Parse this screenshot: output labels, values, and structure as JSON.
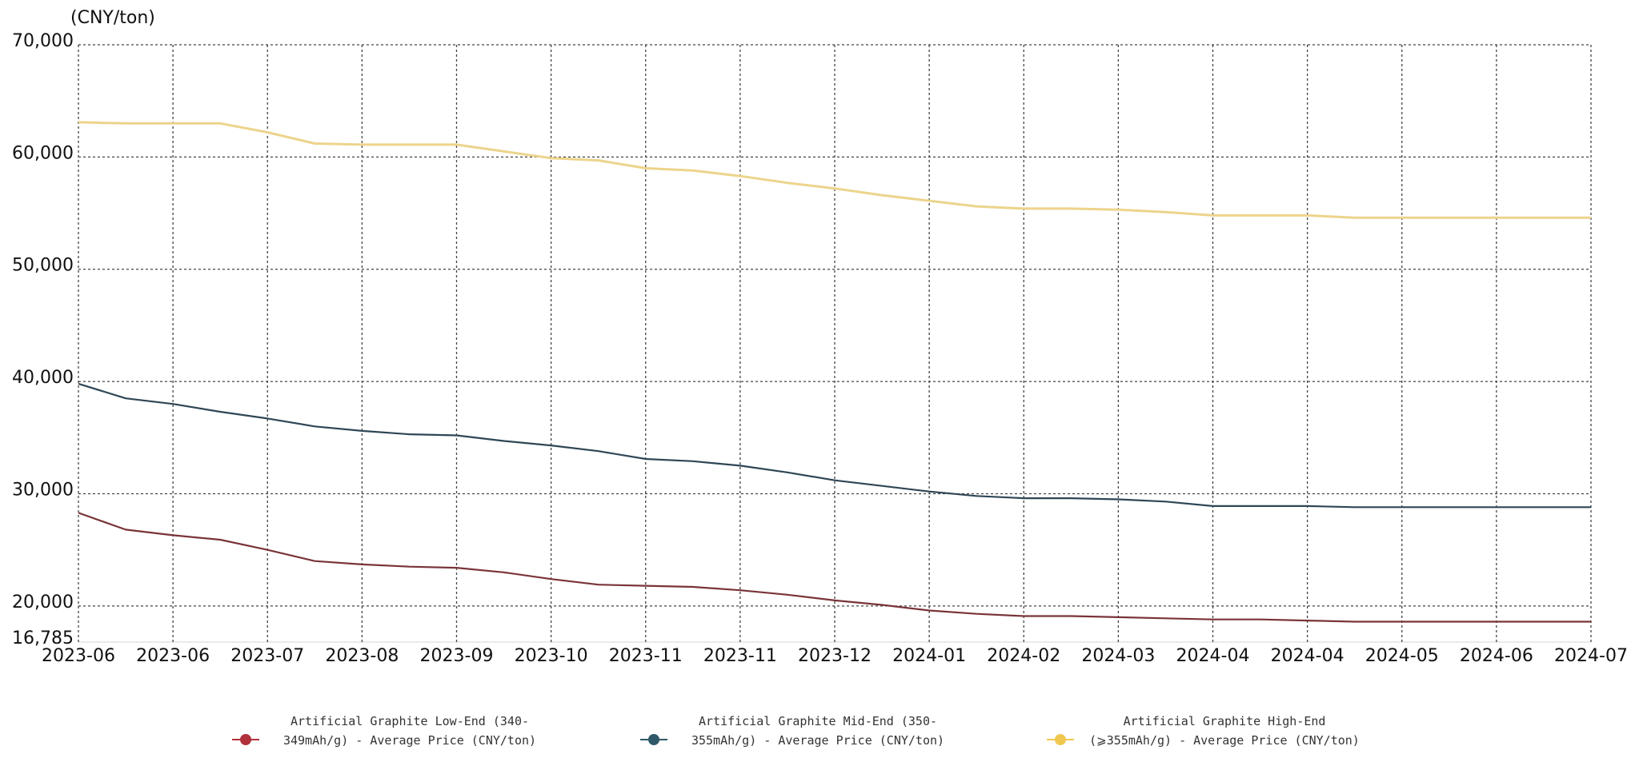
{
  "chart_data": {
    "type": "line",
    "y_label": "(CNY/ton)",
    "categories": [
      "2023-06",
      null,
      "2023-06",
      null,
      "2023-07",
      null,
      "2023-08",
      null,
      "2023-09",
      null,
      "2023-10",
      null,
      "2023-11",
      null,
      "2023-11",
      null,
      "2023-12",
      null,
      "2024-01",
      null,
      "2024-02",
      null,
      "2024-03",
      null,
      "2024-04",
      null,
      "2024-04",
      null,
      "2024-05",
      null,
      "2024-06",
      null,
      "2024-07"
    ],
    "series": [
      {
        "name": "Artificial Graphite Low-End (340-349mAh/g) - Average Price (CNY/ton)",
        "color": "#7a3438",
        "marker_color": "#b0303c",
        "values": [
          28300,
          26800,
          26300,
          25900,
          25000,
          24000,
          23700,
          23500,
          23400,
          23000,
          22400,
          21900,
          21800,
          21700,
          21400,
          21000,
          20500,
          20100,
          19600,
          19300,
          19100,
          19100,
          19000,
          18900,
          18800,
          18800,
          18700,
          18600,
          18600,
          18600,
          18600,
          18600,
          18600
        ]
      },
      {
        "name": "Artificial Graphite Mid-End (350-355mAh/g) - Average Price (CNY/ton)",
        "color": "#2f4656",
        "marker_color": "#2f5868",
        "values": [
          39800,
          38500,
          38000,
          37300,
          36700,
          36000,
          35600,
          35300,
          35200,
          34700,
          34300,
          33800,
          33100,
          32900,
          32500,
          31900,
          31200,
          30700,
          30200,
          29800,
          29600,
          29600,
          29500,
          29300,
          28900,
          28900,
          28900,
          28800,
          28800,
          28800,
          28800,
          28800,
          28800
        ]
      },
      {
        "name": "Artificial Graphite High-End (⩾355mAh/g) - Average Price (CNY/ton)",
        "color": "#ecd48c",
        "marker_color": "#f0c850",
        "values": [
          63100,
          63000,
          63000,
          63000,
          62200,
          61200,
          61100,
          61100,
          61100,
          60500,
          59900,
          59700,
          59000,
          58800,
          58300,
          57700,
          57200,
          56600,
          56100,
          55600,
          55400,
          55400,
          55300,
          55100,
          54800,
          54800,
          54800,
          54600,
          54600,
          54600,
          54600,
          54600,
          54600
        ]
      }
    ],
    "ylim": [
      16785,
      70000
    ],
    "yticks": [
      {
        "value": 16785,
        "label": "16,785"
      },
      {
        "value": 20000,
        "label": "20,000"
      },
      {
        "value": 30000,
        "label": "30,000"
      },
      {
        "value": 40000,
        "label": "40,000"
      },
      {
        "value": 50000,
        "label": "50,000"
      },
      {
        "value": 60000,
        "label": "60,000"
      },
      {
        "value": 70000,
        "label": "70,000"
      }
    ],
    "grid": true
  }
}
